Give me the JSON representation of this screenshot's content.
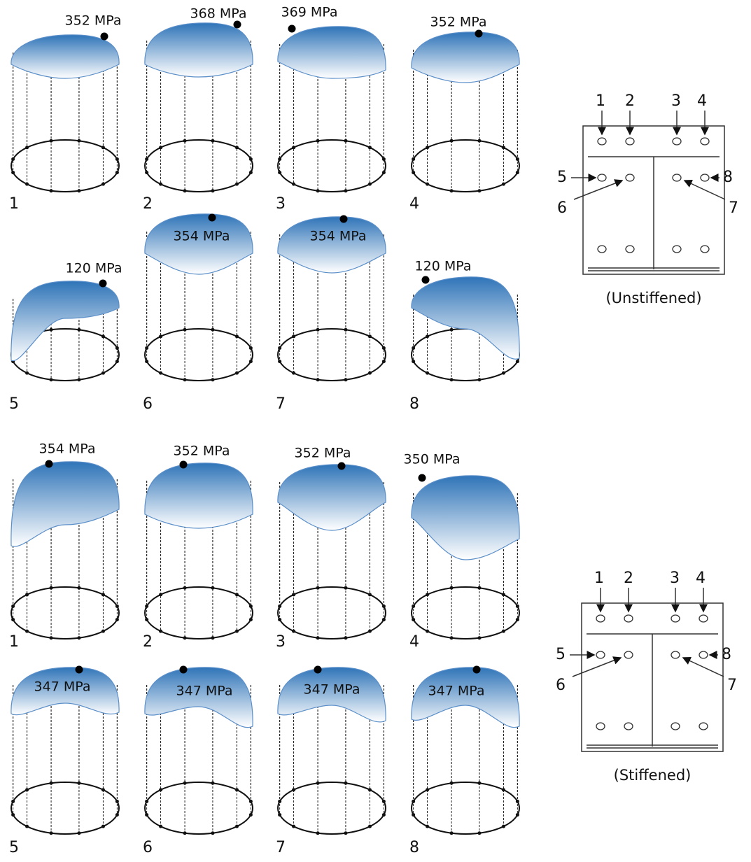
{
  "groups": [
    {
      "caption": "(Unstiffened)",
      "panels": [
        {
          "number": "1",
          "peak": "352 MPa"
        },
        {
          "number": "2",
          "peak": "368 MPa"
        },
        {
          "number": "3",
          "peak": "369 MPa"
        },
        {
          "number": "4",
          "peak": "352 MPa"
        },
        {
          "number": "5",
          "peak": "120 MPa"
        },
        {
          "number": "6",
          "peak": "354 MPa"
        },
        {
          "number": "7",
          "peak": "354 MPa"
        },
        {
          "number": "8",
          "peak": "120 MPa"
        }
      ],
      "key_labels": [
        "1",
        "2",
        "3",
        "4",
        "5",
        "6",
        "7",
        "8"
      ]
    },
    {
      "caption": "(Stiffened)",
      "panels": [
        {
          "number": "1",
          "peak": "354 MPa"
        },
        {
          "number": "2",
          "peak": "352 MPa"
        },
        {
          "number": "3",
          "peak": "352 MPa"
        },
        {
          "number": "4",
          "peak": "350 MPa"
        },
        {
          "number": "5",
          "peak": "347 MPa"
        },
        {
          "number": "6",
          "peak": "347 MPa"
        },
        {
          "number": "7",
          "peak": "347 MPa"
        },
        {
          "number": "8",
          "peak": "347 MPa"
        }
      ],
      "key_labels": [
        "1",
        "2",
        "3",
        "4",
        "5",
        "6",
        "7",
        "8"
      ]
    }
  ]
}
